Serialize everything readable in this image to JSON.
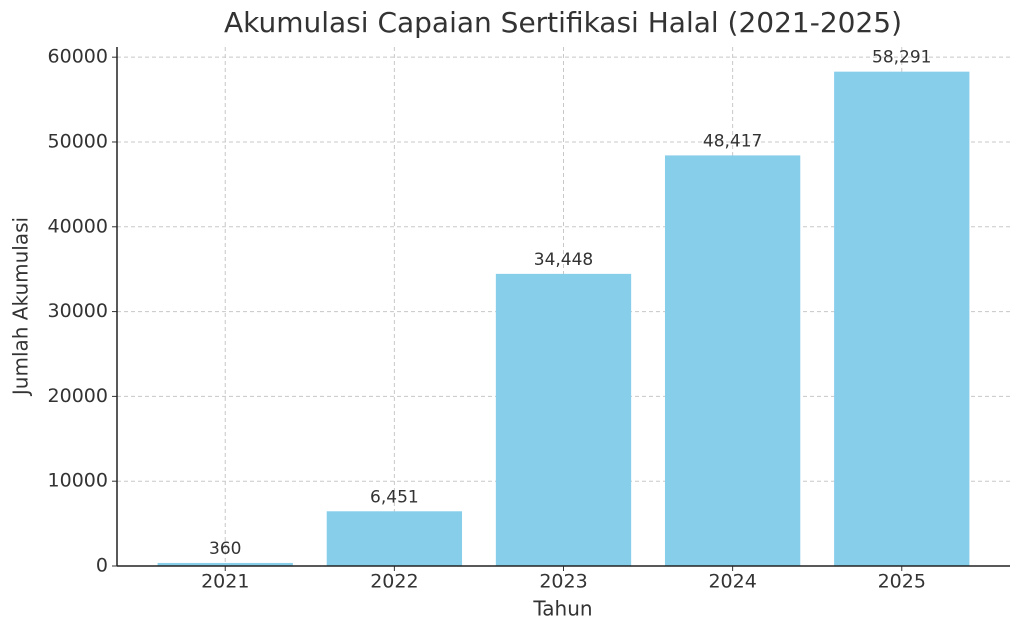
{
  "chart_data": {
    "type": "bar",
    "title": "Akumulasi Capaian Sertifikasi Halal (2021-2025)",
    "x_label": "Tahun",
    "y_label": "Jumlah Akumulasi",
    "categories": [
      "2021",
      "2022",
      "2023",
      "2024",
      "2025"
    ],
    "values": [
      360,
      6451,
      34448,
      48417,
      58291
    ],
    "value_labels": [
      "360",
      "6,451",
      "34,448",
      "48,417",
      "58,291"
    ],
    "color": "#87ceeb",
    "ylim": [
      0,
      61200
    ],
    "yticks": [
      0,
      10000,
      20000,
      30000,
      40000,
      50000,
      60000
    ],
    "grid": true
  }
}
